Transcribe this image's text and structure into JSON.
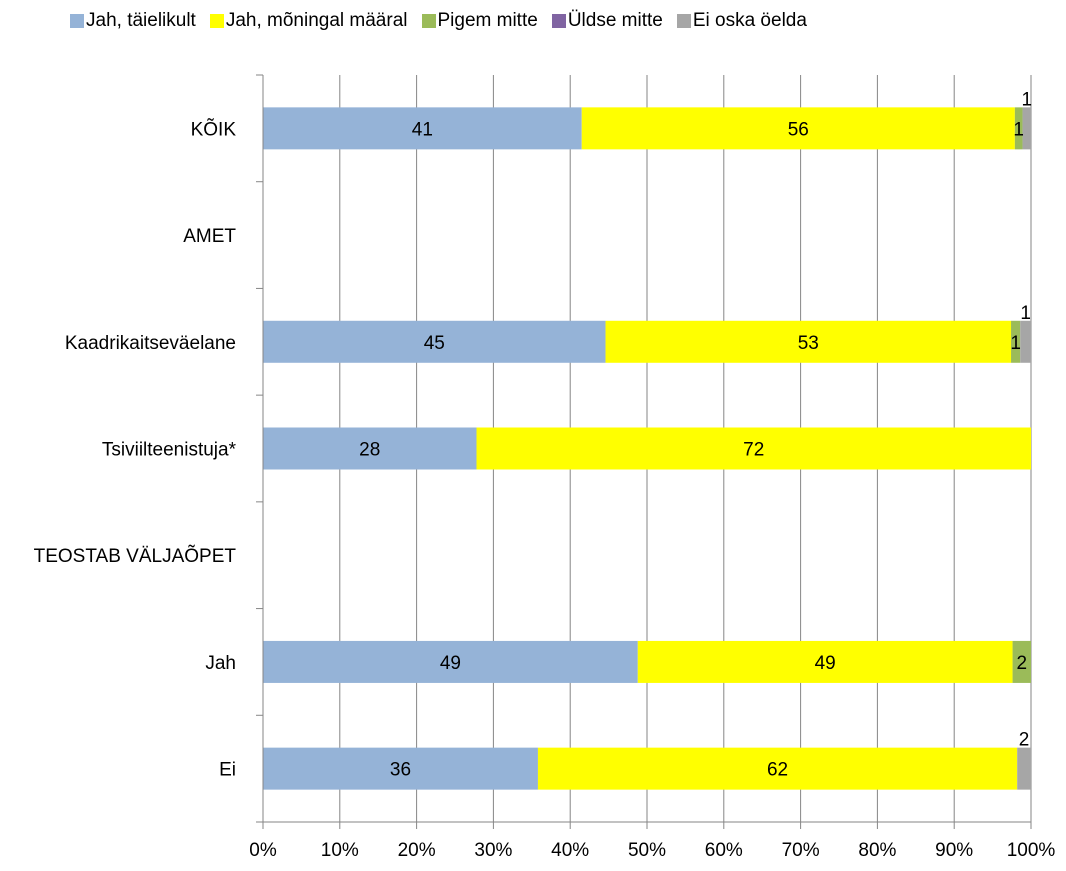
{
  "chart_data": {
    "type": "bar",
    "orientation": "horizontal",
    "stacked": "percent",
    "categories": [
      "KÕIK",
      "AMET",
      "Kaadrikaitseväelane",
      "Tsiviilteenistuja*",
      "TEOSTAB VÄLJAÕPET",
      "Jah",
      "Ei"
    ],
    "series": [
      {
        "name": "Jah, täielikult",
        "color": "#95B3D7",
        "values": [
          41.5,
          null,
          44.6,
          27.8,
          null,
          48.8,
          35.8
        ]
      },
      {
        "name": "Jah, mõningal määral",
        "color": "#FFFF00",
        "values": [
          56.4,
          null,
          52.8,
          72.2,
          null,
          48.8,
          62.4
        ]
      },
      {
        "name": "Pigem mitte",
        "color": "#9BBB59",
        "values": [
          1.0,
          null,
          1.2,
          null,
          null,
          2.4,
          null
        ]
      },
      {
        "name": "Üldse mitte",
        "color": "#8064A2",
        "values": [
          null,
          null,
          null,
          null,
          null,
          null,
          null
        ]
      },
      {
        "name": "Ei oska öelda",
        "color": "#A6A6A6",
        "values": [
          1.1,
          null,
          1.4,
          null,
          null,
          null,
          1.8
        ]
      }
    ],
    "data_labels": [
      [
        "41",
        "",
        "45",
        "28",
        "",
        "49",
        "36"
      ],
      [
        "56",
        "",
        "53",
        "72",
        "",
        "49",
        "62"
      ],
      [
        "1",
        "",
        "1",
        "",
        "",
        "2",
        ""
      ],
      [
        "",
        "",
        "",
        "",
        "",
        "",
        ""
      ],
      [
        "1",
        "",
        "1",
        "",
        "",
        "",
        "2"
      ]
    ],
    "x_ticks": [
      "0%",
      "10%",
      "20%",
      "30%",
      "40%",
      "50%",
      "60%",
      "70%",
      "80%",
      "90%",
      "100%"
    ],
    "xlim": [
      0,
      100
    ],
    "grid": true,
    "legend_position": "top"
  }
}
